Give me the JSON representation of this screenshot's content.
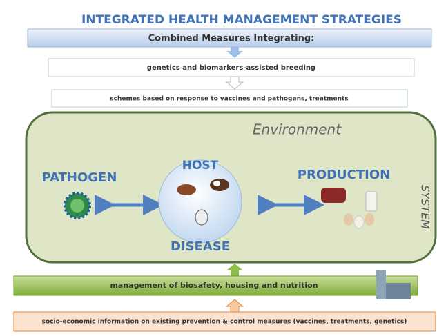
{
  "header": {
    "title": "INTEGRATED HEALTH MANAGEMENT STRATEGIES"
  },
  "measures": {
    "heading": "Combined Measures Integrating:",
    "items": [
      "genetics and biomarkers-assisted breeding",
      "schemes based on response to vaccines and pathogens, treatments"
    ]
  },
  "system": {
    "environment": "Environment",
    "pathogen": "PATHOGEN",
    "host": "HOST",
    "disease": "DISEASE",
    "production": "PRODUCTION",
    "label": "SYSTEM"
  },
  "foundation": {
    "management": "management of biosafety, housing and nutrition",
    "socio_economic": "socio-economic information on existing prevention & control measures (vaccines, treatments, genetics)"
  }
}
